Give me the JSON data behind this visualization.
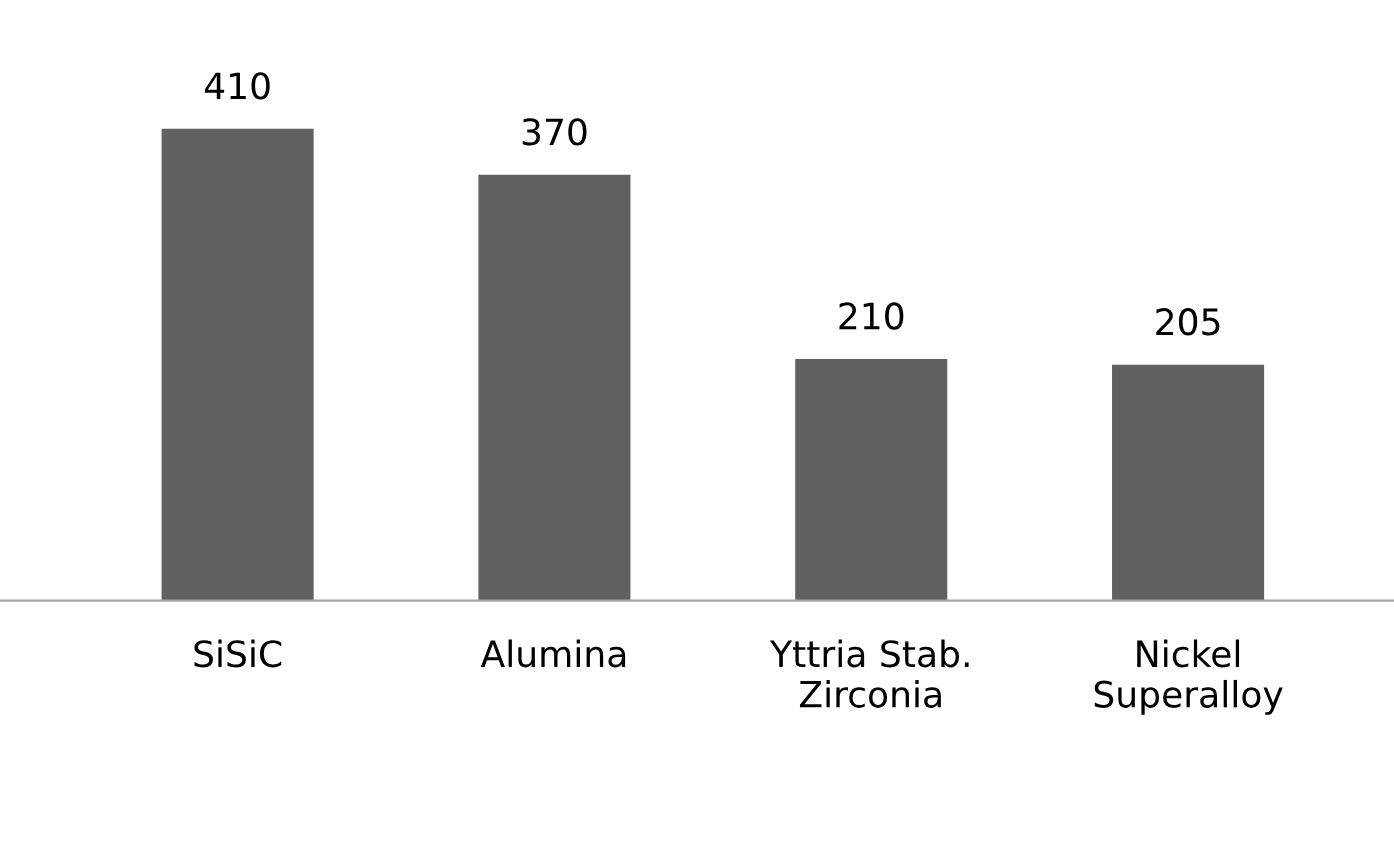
{
  "chart_data": {
    "type": "bar",
    "categories": [
      "SiSiC",
      "Alumina",
      "Yttria Stab.\nZirconia",
      "Nickel\nSuperalloy"
    ],
    "values": [
      410,
      370,
      210,
      205
    ],
    "color": "#616161",
    "data_labels": true,
    "grid": false,
    "legend": false
  }
}
